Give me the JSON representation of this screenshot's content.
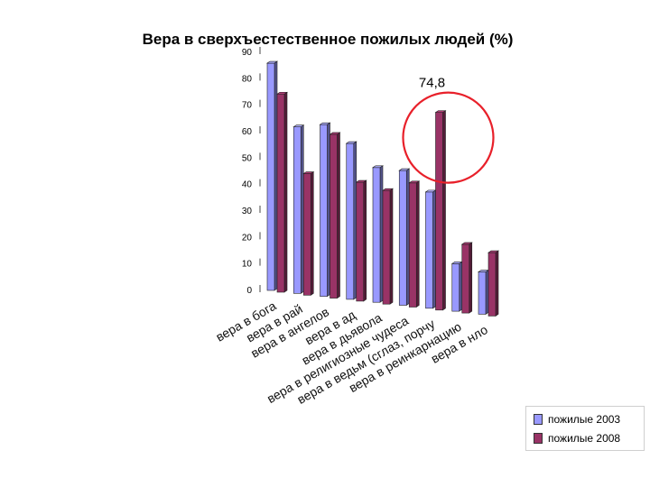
{
  "chart_data": {
    "type": "bar",
    "title": "Вера в сверхъестественное пожилых людей (%)",
    "categories": [
      "вера в бога",
      "вера в рай",
      "вера в ангелов",
      "вера в ад",
      "вера в дьявола",
      "вера в религиозные чудеса",
      "вера в ведьм (сглаз, порчу",
      "вера в реинкарнацию",
      "вера в нло"
    ],
    "series": [
      {
        "name": "пожилые 2003",
        "values": [
          86,
          63,
          65,
          59,
          51,
          51,
          44,
          18,
          16
        ],
        "color": "#9999ff"
      },
      {
        "name": "пожилые 2008",
        "values": [
          75,
          46,
          62,
          45,
          43,
          47,
          74.8,
          26,
          24
        ],
        "color": "#993366"
      }
    ],
    "y_ticks": [
      0,
      10,
      20,
      30,
      40,
      50,
      60,
      70,
      80,
      90
    ],
    "ylim": [
      0,
      90
    ],
    "annotation": {
      "text": "74,8",
      "series": 1,
      "category_index": 6,
      "circled": true
    },
    "grid": false,
    "legend_position": "bottom-right",
    "legend": [
      "пожилые 2003",
      "пожилые 2008"
    ]
  }
}
